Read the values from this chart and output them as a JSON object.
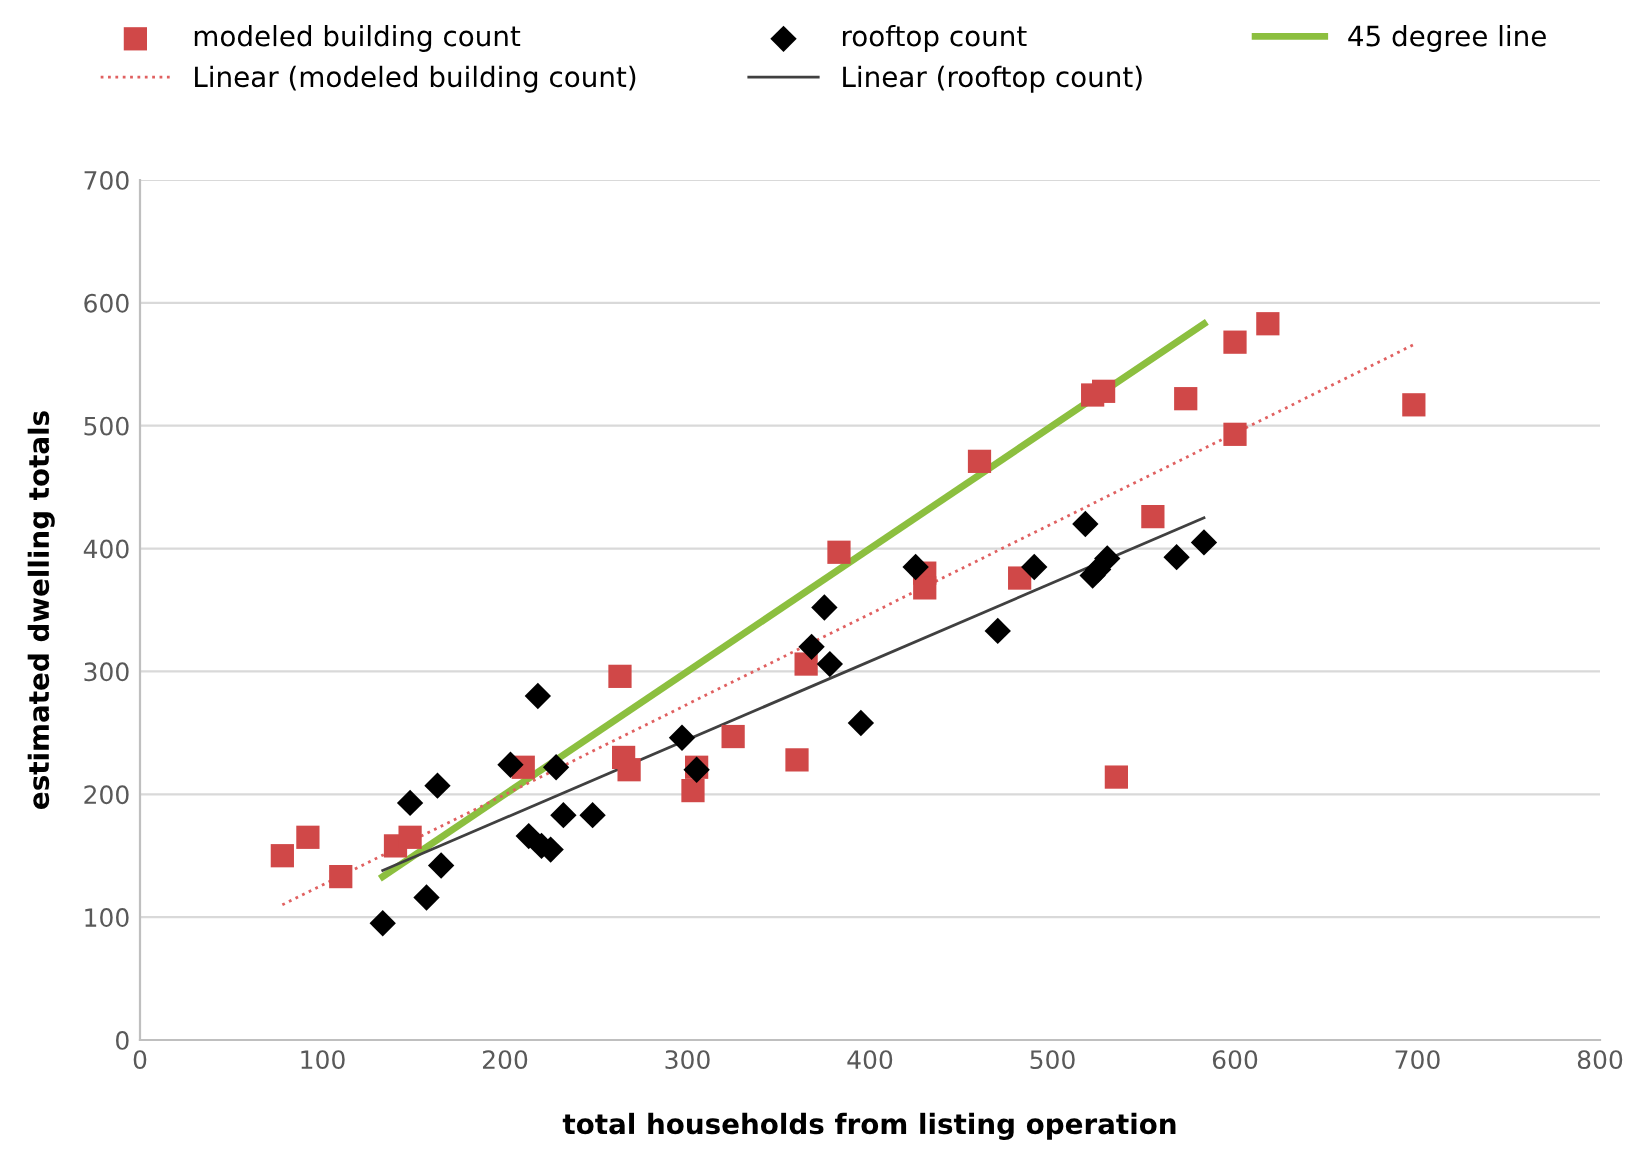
{
  "chart_data": {
    "type": "scatter",
    "xlabel": "total households from listing operation",
    "ylabel": "estimated dwelling totals",
    "xlim": [
      0,
      800
    ],
    "xticks": [
      0,
      100,
      200,
      300,
      400,
      500,
      600,
      700,
      800
    ],
    "ylim": [
      0,
      700
    ],
    "yticks": [
      0,
      100,
      200,
      300,
      400,
      500,
      600,
      700
    ],
    "grid": "y",
    "legend": "top",
    "series": [
      {
        "name": "modeled building count",
        "marker": "square",
        "color": "#d04848",
        "x": [
          78,
          92,
          110,
          140,
          148,
          210,
          263,
          265,
          268,
          303,
          305,
          325,
          360,
          365,
          383,
          430,
          430,
          460,
          482,
          522,
          528,
          535,
          555,
          573,
          600,
          600,
          618,
          698
        ],
        "values": [
          150,
          165,
          133,
          158,
          165,
          222,
          296,
          230,
          220,
          203,
          222,
          247,
          228,
          306,
          397,
          380,
          368,
          471,
          376,
          525,
          528,
          214,
          426,
          522,
          568,
          493,
          583,
          517
        ]
      },
      {
        "name": "rooftop count",
        "marker": "diamond",
        "color": "#000000",
        "x": [
          133,
          148,
          157,
          163,
          165,
          203,
          213,
          218,
          220,
          225,
          228,
          232,
          248,
          297,
          305,
          368,
          375,
          378,
          395,
          425,
          470,
          490,
          518,
          522,
          525,
          530,
          568,
          583
        ],
        "values": [
          95,
          193,
          116,
          207,
          142,
          224,
          166,
          280,
          158,
          155,
          222,
          183,
          183,
          246,
          220,
          320,
          352,
          306,
          258,
          385,
          333,
          385,
          420,
          378,
          383,
          392,
          393,
          405
        ]
      },
      {
        "name": "45 degree line",
        "type": "line",
        "line_style": "solid",
        "color": "#8cbf3f",
        "x": [
          133,
          583
        ],
        "values": [
          133,
          583
        ]
      },
      {
        "name": "Linear (modeled building count)",
        "type": "line",
        "line_style": "dotted",
        "color": "#e06060",
        "x": [
          78,
          698
        ],
        "values": [
          110,
          566
        ]
      },
      {
        "name": "Linear (rooftop count)",
        "type": "line",
        "line_style": "solid",
        "color": "#404040",
        "x": [
          133,
          583
        ],
        "values": [
          138,
          425
        ]
      }
    ]
  }
}
